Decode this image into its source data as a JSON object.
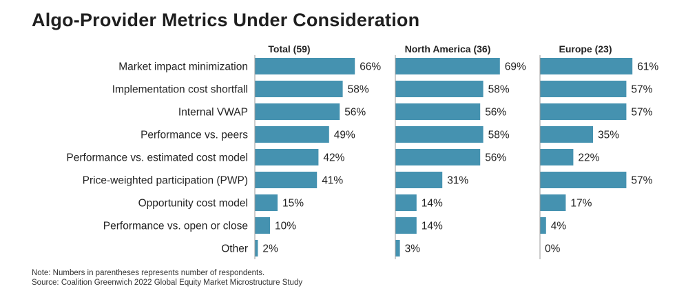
{
  "chart_data": {
    "type": "bar",
    "orientation": "horizontal",
    "title": "Algo-Provider Metrics Under Consideration",
    "categories": [
      "Market impact minimization",
      "Implementation cost shortfall",
      "Internal VWAP",
      "Performance vs. peers",
      "Performance vs. estimated cost model",
      "Price-weighted participation (PWP)",
      "Opportunity cost model",
      "Performance vs. open or close",
      "Other"
    ],
    "value_suffix": "%",
    "panels": [
      {
        "name": "Total (59)",
        "values": [
          66,
          58,
          56,
          49,
          42,
          41,
          15,
          10,
          2
        ]
      },
      {
        "name": "North America (36)",
        "values": [
          69,
          58,
          56,
          58,
          56,
          31,
          14,
          14,
          3
        ]
      },
      {
        "name": "Europe (23)",
        "values": [
          61,
          57,
          57,
          35,
          22,
          57,
          17,
          4,
          0
        ]
      }
    ],
    "grid": false,
    "legend": "none",
    "bar_color": "#4592b0",
    "axis_color": "#9a9a9a"
  },
  "notes": {
    "note": "Note: Numbers in parentheses represents number of respondents.",
    "source": "Source: Coalition Greenwich 2022 Global Equity Market Microstructure Study"
  }
}
